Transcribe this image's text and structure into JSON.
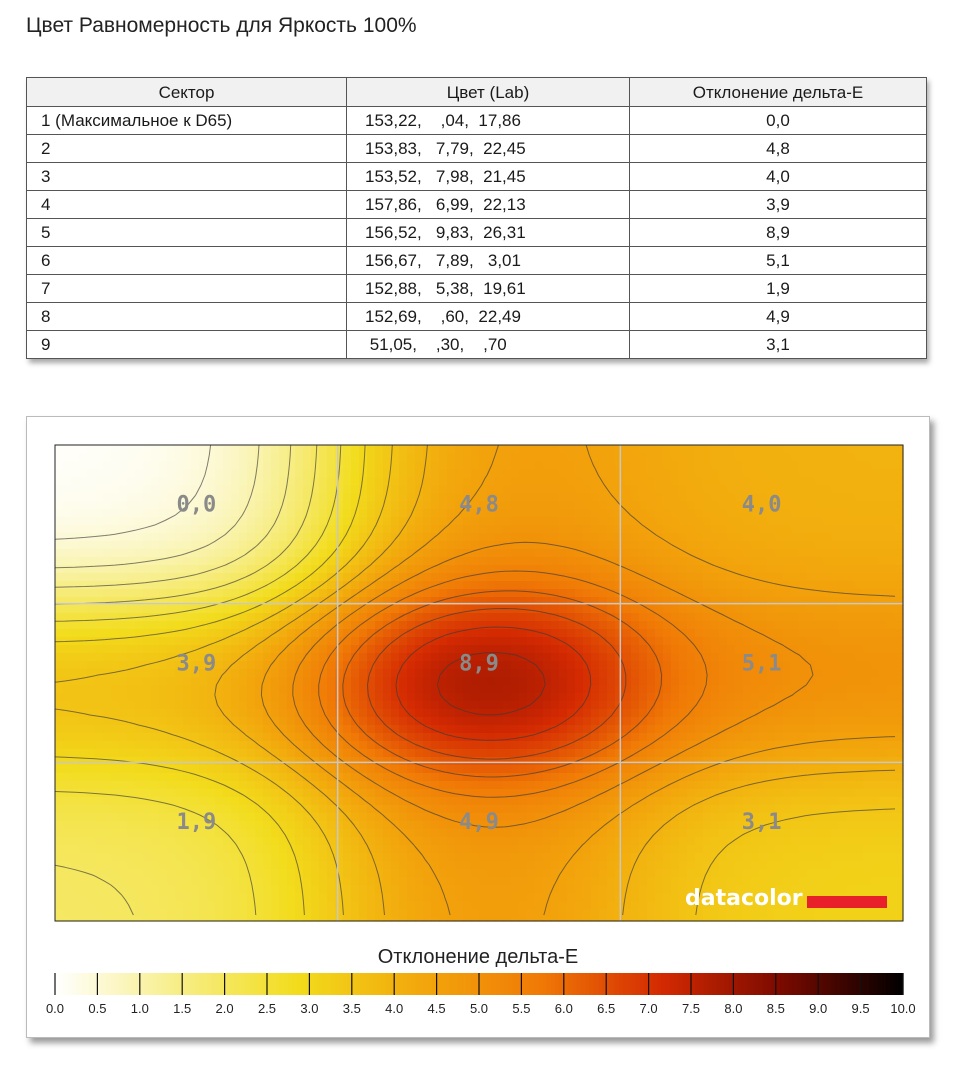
{
  "page": {
    "title": "Цвет Равномерность для Яркость 100%"
  },
  "table": {
    "headers": [
      "Сектор",
      "Цвет (Lab)",
      "Отклонение дельта-E"
    ],
    "rows": [
      {
        "sector": "1 (Максимальное к D65)",
        "lab": "153,22,    ,04,  17,86",
        "de": "0,0"
      },
      {
        "sector": "2",
        "lab": "153,83,   7,79,  22,45",
        "de": "4,8"
      },
      {
        "sector": "3",
        "lab": "153,52,   7,98,  21,45",
        "de": "4,0"
      },
      {
        "sector": "4",
        "lab": "157,86,   6,99,  22,13",
        "de": "3,9"
      },
      {
        "sector": "5",
        "lab": "156,52,   9,83,  26,31",
        "de": "8,9"
      },
      {
        "sector": "6",
        "lab": "156,67,   7,89,   3,01",
        "de": "5,1"
      },
      {
        "sector": "7",
        "lab": "152,88,   5,38,  19,61",
        "de": "1,9"
      },
      {
        "sector": "8",
        "lab": "152,69,    ,60,  22,49",
        "de": "4,9"
      },
      {
        "sector": "9",
        "lab": " 51,05,    ,30,    ,70",
        "de": "3,1"
      }
    ]
  },
  "chart_data": {
    "type": "heatmap",
    "grid": {
      "rows": 3,
      "cols": 3,
      "gridlines": true
    },
    "sectors": [
      {
        "row": 0,
        "col": 0,
        "label": "0,0",
        "value": 0.0
      },
      {
        "row": 0,
        "col": 1,
        "label": "4,8",
        "value": 4.8
      },
      {
        "row": 0,
        "col": 2,
        "label": "4,0",
        "value": 4.0
      },
      {
        "row": 1,
        "col": 0,
        "label": "3,9",
        "value": 3.9
      },
      {
        "row": 1,
        "col": 1,
        "label": "8,9",
        "value": 8.9
      },
      {
        "row": 1,
        "col": 2,
        "label": "5,1",
        "value": 5.1
      },
      {
        "row": 2,
        "col": 0,
        "label": "1,9",
        "value": 1.9
      },
      {
        "row": 2,
        "col": 1,
        "label": "4,9",
        "value": 4.9
      },
      {
        "row": 2,
        "col": 2,
        "label": "3,1",
        "value": 3.1
      }
    ],
    "legend_title": "Отклонение дельта-E",
    "scale_range": [
      0,
      10
    ],
    "scale_ticks": [
      "0.0",
      "0.5",
      "1.0",
      "1.5",
      "2.0",
      "2.5",
      "3.0",
      "3.5",
      "4.0",
      "4.5",
      "5.0",
      "5.5",
      "6.0",
      "6.5",
      "7.0",
      "7.5",
      "8.0",
      "8.5",
      "9.0",
      "9.5",
      "10.0"
    ],
    "color_stops": [
      "#ffffff",
      "#f7ee8a",
      "#f2dc1c",
      "#f2a80c",
      "#f07a06",
      "#d42a02",
      "#7a0a00",
      "#000000"
    ],
    "logo_text": "datacolor",
    "logo_accent": "#e8202a"
  }
}
